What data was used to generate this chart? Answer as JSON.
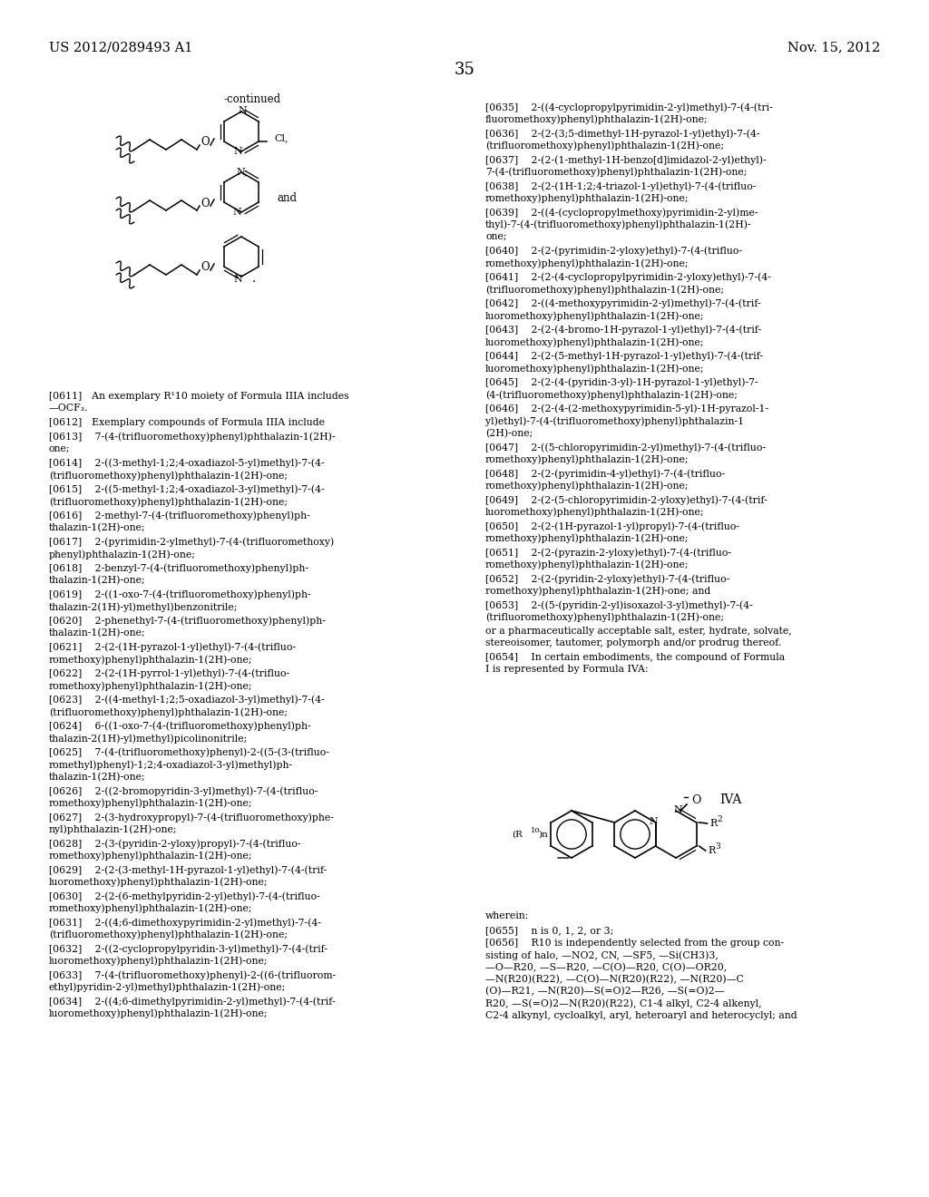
{
  "header_left": "US 2012/0289493 A1",
  "header_right": "Nov. 15, 2012",
  "page_number": "35",
  "background_color": "#ffffff",
  "text_color": "#000000",
  "continued_label": "-continued",
  "left_col_texts": [
    "[0611] An exemplary R¹10 moiety of Formula IIIA includes\n—OCF₃.",
    "[0612] Exemplary compounds of Formula IIIA include",
    "[0613]  7-(4-(trifluoromethoxy)phenyl)phthalazin-1(2H)-\none;",
    "[0614]  2-((3-methyl-1;2;4-oxadiazol-5-yl)methyl)-7-(4-\n(trifluoromethoxy)phenyl)phthalazin-1(2H)-one;",
    "[0615]  2-((5-methyl-1;2;4-oxadiazol-3-yl)methyl)-7-(4-\n(trifluoromethoxy)phenyl)phthalazin-1(2H)-one;",
    "[0616]  2-methyl-7-(4-(trifluoromethoxy)phenyl)ph-\nthalazin-1(2H)-one;",
    "[0617]  2-(pyrimidin-2-ylmethyl)-7-(4-(trifluoromethoxy)\nphenyl)phthalazin-1(2H)-one;",
    "[0618]  2-benzyl-7-(4-(trifluoromethoxy)phenyl)ph-\nthalazin-1(2H)-one;",
    "[0619]  2-((1-oxo-7-(4-(trifluoromethoxy)phenyl)ph-\nthalazin-2(1H)-yl)methyl)benzonitrile;",
    "[0620]  2-phenethyl-7-(4-(trifluoromethoxy)phenyl)ph-\nthalazin-1(2H)-one;",
    "[0621]  2-(2-(1H-pyrazol-1-yl)ethyl)-7-(4-(trifluo-\nromethoxy)phenyl)phthalazin-1(2H)-one;",
    "[0622]  2-(2-(1H-pyrrol-1-yl)ethyl)-7-(4-(trifluo-\nromethoxy)phenyl)phthalazin-1(2H)-one;",
    "[0623]  2-((4-methyl-1;2;5-oxadiazol-3-yl)methyl)-7-(4-\n(trifluoromethoxy)phenyl)phthalazin-1(2H)-one;",
    "[0624]  6-((1-oxo-7-(4-(trifluoromethoxy)phenyl)ph-\nthalazin-2(1H)-yl)methyl)picolinonitrile;",
    "[0625]  7-(4-(trifluoromethoxy)phenyl)-2-((5-(3-(trifluo-\nromethyl)phenyl)-1;2;4-oxadiazol-3-yl)methyl)ph-\nthalazin-1(2H)-one;",
    "[0626]  2-((2-bromopyridin-3-yl)methyl)-7-(4-(trifluo-\nromethoxy)phenyl)phthalazin-1(2H)-one;",
    "[0627]  2-(3-hydroxypropyl)-7-(4-(trifluoromethoxy)phe-\nnyl)phthalazin-1(2H)-one;",
    "[0628]  2-(3-(pyridin-2-yloxy)propyl)-7-(4-(trifluo-\nromethoxy)phenyl)phthalazin-1(2H)-one;",
    "[0629]  2-(2-(3-methyl-1H-pyrazol-1-yl)ethyl)-7-(4-(trif-\nluoromethoxy)phenyl)phthalazin-1(2H)-one;",
    "[0630]  2-(2-(6-methylpyridin-2-yl)ethyl)-7-(4-(trifluo-\nromethoxy)phenyl)phthalazin-1(2H)-one;",
    "[0631]  2-((4;6-dimethoxypyrimidin-2-yl)methyl)-7-(4-\n(trifluoromethoxy)phenyl)phthalazin-1(2H)-one;",
    "[0632]  2-((2-cyclopropylpyridin-3-yl)methyl)-7-(4-(trif-\nluoromethoxy)phenyl)phthalazin-1(2H)-one;",
    "[0633]  7-(4-(trifluoromethoxy)phenyl)-2-((6-(trifluorom-\nethyl)pyridin-2-yl)methyl)phthalazin-1(2H)-one;",
    "[0634]  2-((4;6-dimethylpyrimidin-2-yl)methyl)-7-(4-(trif-\nluoromethoxy)phenyl)phthalazin-1(2H)-one;"
  ],
  "right_col_texts": [
    "[0635]  2-((4-cyclopropylpyrimidin-2-yl)methyl)-7-(4-(tri-\nfluoromethoxy)phenyl)phthalazin-1(2H)-one;",
    "[0636]  2-(2-(3;5-dimethyl-1H-pyrazol-1-yl)ethyl)-7-(4-\n(trifluoromethoxy)phenyl)phthalazin-1(2H)-one;",
    "[0637]  2-(2-(1-methyl-1H-benzo[d]imidazol-2-yl)ethyl)-\n7-(4-(trifluoromethoxy)phenyl)phthalazin-1(2H)-one;",
    "[0638]  2-(2-(1H-1;2;4-triazol-1-yl)ethyl)-7-(4-(trifluo-\nromethoxy)phenyl)phthalazin-1(2H)-one;",
    "[0639]  2-((4-(cyclopropylmethoxy)pyrimidin-2-yl)me-\nthyl)-7-(4-(trifluoromethoxy)phenyl)phthalazin-1(2H)-\none;",
    "[0640]  2-(2-(pyrimidin-2-yloxy)ethyl)-7-(4-(trifluo-\nromethoxy)phenyl)phthalazin-1(2H)-one;",
    "[0641]  2-(2-(4-cyclopropylpyrimidin-2-yloxy)ethyl)-7-(4-\n(trifluoromethoxy)phenyl)phthalazin-1(2H)-one;",
    "[0642]  2-((4-methoxypyrimidin-2-yl)methyl)-7-(4-(trif-\nluoromethoxy)phenyl)phthalazin-1(2H)-one;",
    "[0643]  2-(2-(4-bromo-1H-pyrazol-1-yl)ethyl)-7-(4-(trif-\nluoromethoxy)phenyl)phthalazin-1(2H)-one;",
    "[0644]  2-(2-(5-methyl-1H-pyrazol-1-yl)ethyl)-7-(4-(trif-\nluoromethoxy)phenyl)phthalazin-1(2H)-one;",
    "[0645]  2-(2-(4-(pyridin-3-yl)-1H-pyrazol-1-yl)ethyl)-7-\n(4-(trifluoromethoxy)phenyl)phthalazin-1(2H)-one;",
    "[0646]  2-(2-(4-(2-methoxypyrimidin-5-yl)-1H-pyrazol-1-\nyl)ethyl)-7-(4-(trifluoromethoxy)phenyl)phthalazin-1\n(2H)-one;",
    "[0647]  2-((5-chloropyrimidin-2-yl)methyl)-7-(4-(trifluo-\nromethoxy)phenyl)phthalazin-1(2H)-one;",
    "[0648]  2-(2-(pyrimidin-4-yl)ethyl)-7-(4-(trifluo-\nromethoxy)phenyl)phthalazin-1(2H)-one;",
    "[0649]  2-(2-(5-chloropyrimidin-2-yloxy)ethyl)-7-(4-(trif-\nluoromethoxy)phenyl)phthalazin-1(2H)-one;",
    "[0650]  2-(2-(1H-pyrazol-1-yl)propyl)-7-(4-(trifluo-\nromethoxy)phenyl)phthalazin-1(2H)-one;",
    "[0651]  2-(2-(pyrazin-2-yloxy)ethyl)-7-(4-(trifluo-\nromethoxy)phenyl)phthalazin-1(2H)-one;",
    "[0652]  2-(2-(pyridin-2-yloxy)ethyl)-7-(4-(trifluo-\nromethoxy)phenyl)phthalazin-1(2H)-one; and",
    "[0653]  2-((5-(pyridin-2-yl)isoxazol-3-yl)methyl)-7-(4-\n(trifluoromethoxy)phenyl)phthalazin-1(2H)-one;",
    "or a pharmaceutically acceptable salt, ester, hydrate, solvate,\nstereoisomer, tautomer, polymorph and/or prodrug thereof.",
    "[0654]  In certain embodiments, the compound of Formula\nI is represented by Formula IVA:"
  ],
  "wherein_text": "wherein:",
  "param_0655": "[0655]  n is 0, 1, 2, or 3;",
  "param_0656": "[0656]  R10 is independently selected from the group con-\nsisting of halo, —NO2, CN, —SF5, —Si(CH3)3,\n—O—R20, —S—R20, —C(O)—R20, C(O)—OR20,\n—N(R20)(R22), —C(O)—N(R20)(R22), —N(R20)—C\n(O)—R21, —N(R20)—S(=O)2—R26, —S(=O)2—\nR20, —S(=O)2—N(R20)(R22), C1-4 alkyl, C2-4 alkenyl,\nC2-4 alkynyl, cycloalkyl, aryl, heteroaryl and heterocyclyl; and",
  "formula_IVA_label": "IVA"
}
